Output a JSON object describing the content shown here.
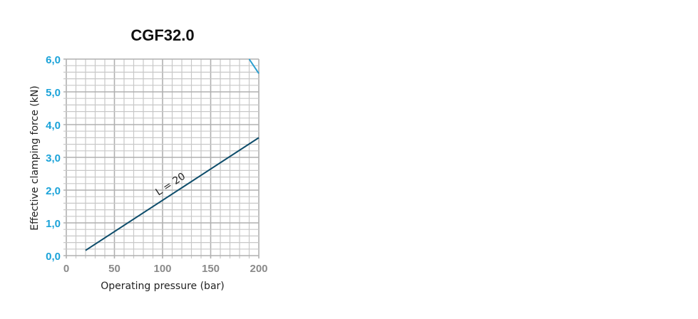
{
  "chart_data": {
    "type": "line",
    "title": "CGF32.0",
    "xlabel": "Operating pressure (bar)",
    "ylabel": "Effective clamping force (kN)",
    "xlim": [
      0,
      200
    ],
    "ylim": [
      0,
      6
    ],
    "x_ticks": [
      "0",
      "50",
      "100",
      "150",
      "200"
    ],
    "y_ticks": [
      "0,0",
      "1,0",
      "2,0",
      "3,0",
      "4,0",
      "5,0",
      "6,0"
    ],
    "grid": true,
    "grid_minor_x": 10,
    "grid_minor_y": 0.2,
    "series": [
      {
        "name": "L = 20",
        "color": "#0e4d6b",
        "x": [
          20,
          200
        ],
        "y": [
          0.16,
          3.6
        ]
      },
      {
        "color": "#2a9fd0",
        "x": [
          190,
          200
        ],
        "y": [
          6.0,
          5.56
        ]
      }
    ],
    "annotations": [
      {
        "text": "L = 20",
        "x": 110,
        "y": 2.1
      }
    ],
    "colors": {
      "ytick": "#1ba3d9",
      "xtick": "#8a8a8a",
      "grid": "#c8c8c8"
    }
  }
}
